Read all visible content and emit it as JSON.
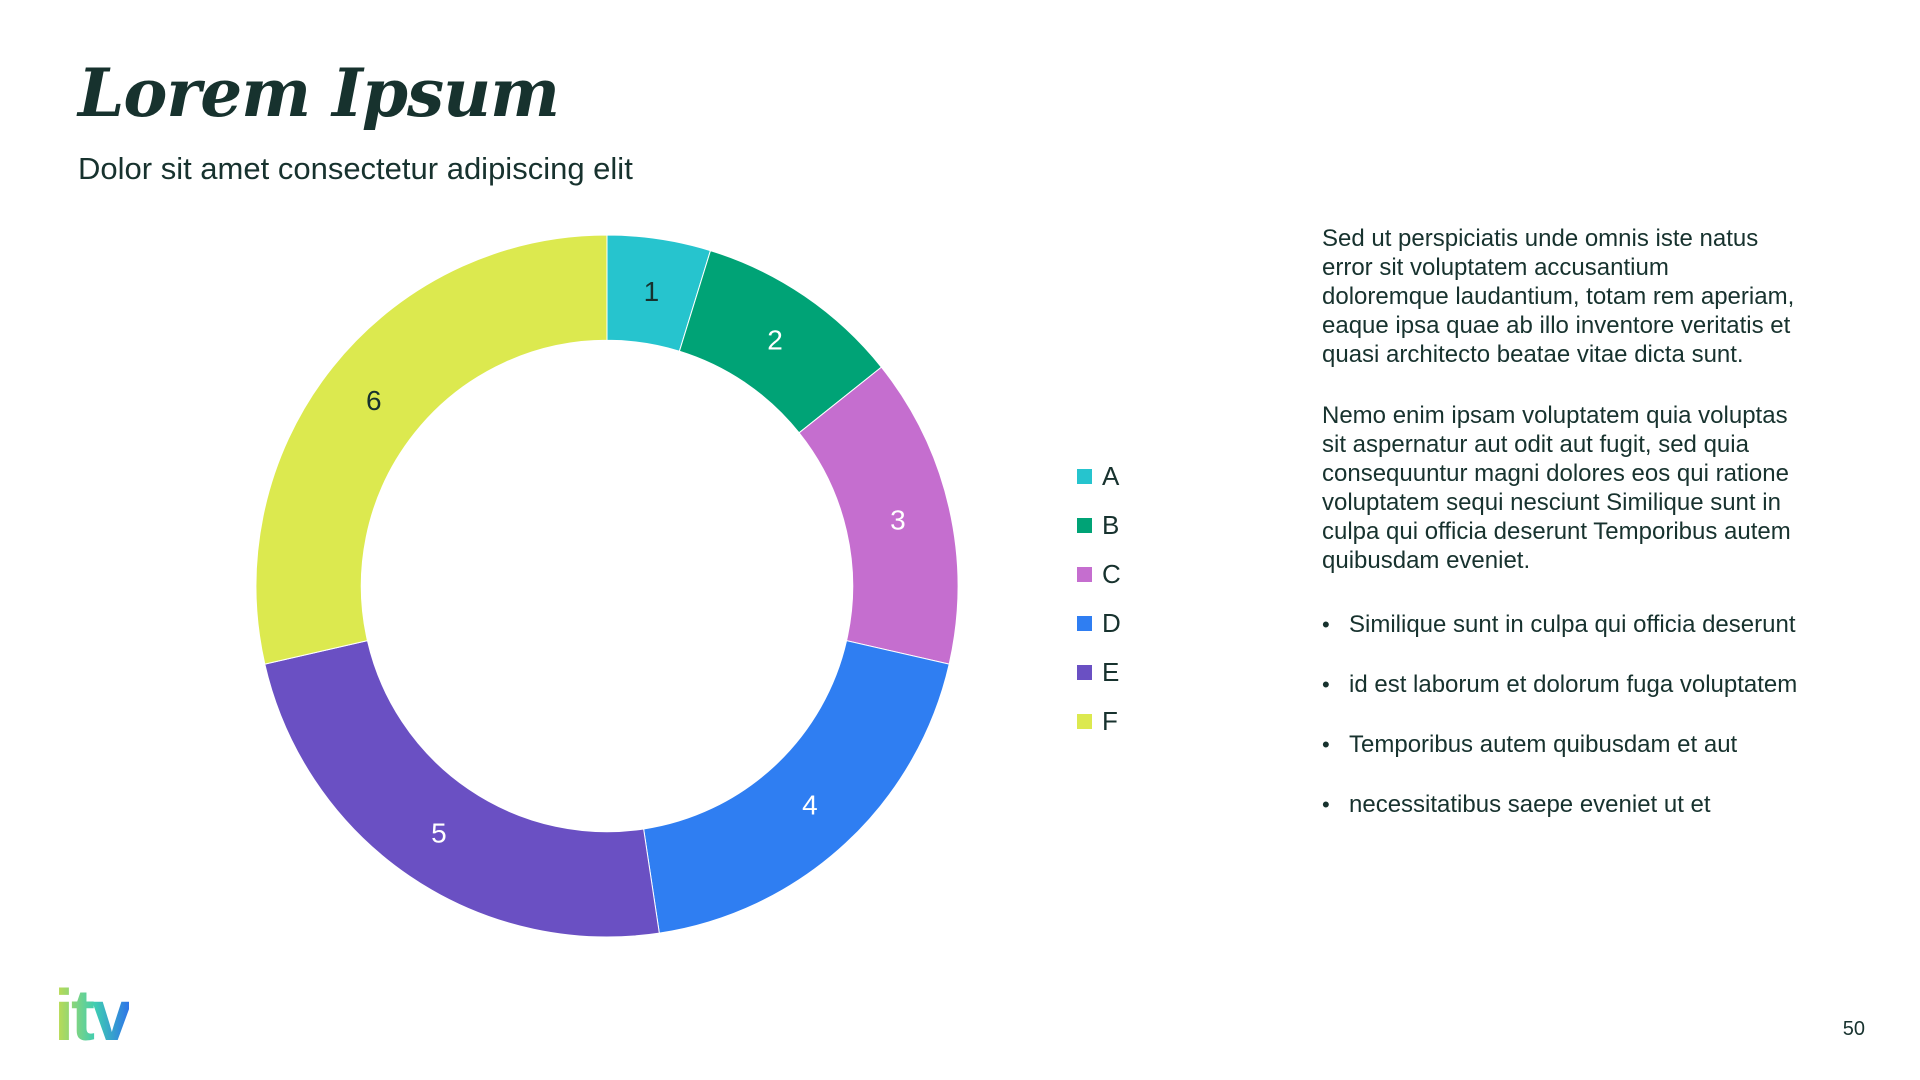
{
  "slide": {
    "title": "Lorem Ipsum",
    "subtitle": "Dolor sit amet consectetur adipiscing elit",
    "page_number": "50",
    "logo_text": "itv"
  },
  "body": {
    "paragraphs": [
      "Sed ut perspiciatis unde omnis iste natus\nerror sit voluptatem accusantium\ndoloremque laudantium, totam rem aperiam,\neaque ipsa quae ab illo inventore veritatis et\nquasi architecto beatae vitae dicta sunt.",
      "Nemo enim ipsam voluptatem quia voluptas\nsit aspernatur aut odit aut fugit, sed quia\nconsequuntur magni dolores eos qui ratione\nvoluptatem sequi nesciunt Similique sunt in\nculpa qui officia deserunt Temporibus autem\nquibusdam eveniet."
    ],
    "bullets": [
      "Similique sunt in culpa qui officia deserunt",
      "id est laborum et dolorum fuga voluptatem",
      "Temporibus autem quibusdam et aut",
      "necessitatibus saepe eveniet ut et"
    ],
    "bullet_marker": "•"
  },
  "chart_data": {
    "type": "pie",
    "subtype": "donut",
    "title": "",
    "categories": [
      "A",
      "B",
      "C",
      "D",
      "E",
      "F"
    ],
    "values": [
      1,
      2,
      3,
      4,
      5,
      6
    ],
    "slice_labels": [
      "1",
      "2",
      "3",
      "4",
      "5",
      "6"
    ],
    "colors": [
      "#26C4CE",
      "#00A376",
      "#C56ECF",
      "#2F7EF2",
      "#6A50C3",
      "#DCE94F"
    ],
    "slice_label_colors": [
      "#17322E",
      "#FFFFFF",
      "#FFFFFF",
      "#FFFFFF",
      "#FFFFFF",
      "#17322E"
    ],
    "start_angle_deg": 0,
    "direction": "clockwise",
    "inner_radius_ratio": 0.7,
    "slice_border_color": "#FFFFFF",
    "legend_position": "right",
    "legend_text_color": "#17322E"
  },
  "colors": {
    "background": "#FFFFFF",
    "text_dark": "#17322E",
    "logo_gradient": [
      "#C8DC4B",
      "#3FCDB2",
      "#2E75E8"
    ]
  }
}
